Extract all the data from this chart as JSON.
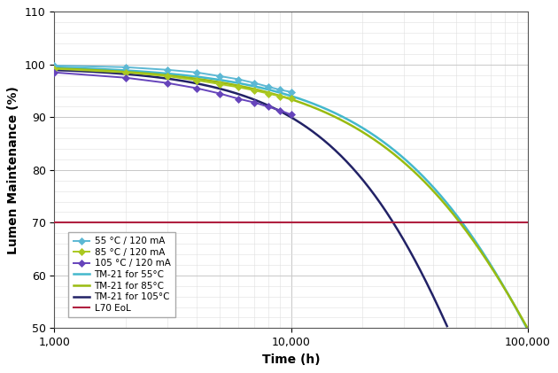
{
  "title": "",
  "xlabel": "Time (h)",
  "ylabel": "Lumen Maintenance (%)",
  "ylim": [
    50,
    110
  ],
  "xlim": [
    1000,
    100000
  ],
  "yticks": [
    50,
    60,
    70,
    80,
    90,
    100,
    110
  ],
  "l70_y": 70,
  "background_color": "#ffffff",
  "grid_color": "#cccccc",
  "lm80_times": [
    1000,
    2000,
    3000,
    4000,
    5000,
    6000,
    7000,
    8000,
    9000,
    10000
  ],
  "lm80_55_values": [
    99.8,
    99.5,
    99.0,
    98.5,
    97.8,
    97.2,
    96.5,
    95.8,
    95.2,
    94.8
  ],
  "lm80_85_values": [
    99.2,
    98.5,
    97.8,
    97.0,
    96.3,
    95.7,
    95.1,
    94.5,
    94.0,
    93.6
  ],
  "lm80_105_values": [
    98.5,
    97.5,
    96.5,
    95.5,
    94.5,
    93.5,
    92.8,
    92.0,
    91.3,
    90.5
  ],
  "color_lm80_55": "#5cb8d4",
  "color_lm80_85": "#aac820",
  "color_lm80_105": "#6644bb",
  "color_tm21_55": "#44b8cc",
  "color_tm21_85": "#99bb10",
  "color_tm21_105": "#222266",
  "color_l70": "#b02040",
  "label_lm80_55": "55 °C / 120 mA",
  "label_lm80_85": "85 °C / 120 mA",
  "label_lm80_105": "105 °C / 120 mA",
  "label_tm21_55": "TM-21 for 55°C",
  "label_tm21_85": "TM-21 for 85°C",
  "label_tm21_105": "TM-21 for 105°C",
  "label_l70": "L70 EoL",
  "tm21_55_alpha": 4.2e-06,
  "tm21_55_n": 1.0,
  "tm21_55_scale": 100.2,
  "tm21_85_alpha": 5.8e-06,
  "tm21_85_n": 1.0,
  "tm21_85_scale": 99.8,
  "tm21_105_alpha": 1.05e-05,
  "tm21_105_n": 1.0,
  "tm21_105_scale": 99.5
}
